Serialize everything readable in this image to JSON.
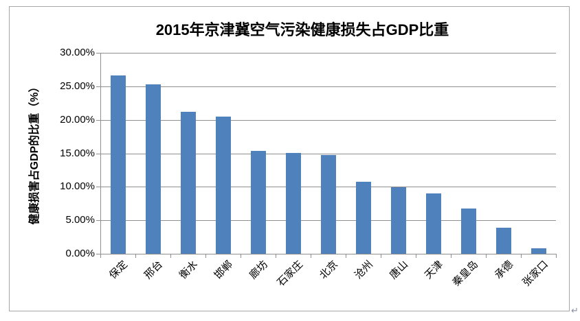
{
  "chart_data": {
    "type": "bar",
    "title": "2015年京津冀空气污染健康损失占GDP比重",
    "ylabel": "健康损害占GDP的比重（%）",
    "xlabel": "",
    "categories": [
      "保定",
      "邢台",
      "衡水",
      "邯郸",
      "廊坊",
      "石家庄",
      "北京",
      "沧州",
      "唐山",
      "天津",
      "秦皇岛",
      "承德",
      "张家口"
    ],
    "values": [
      26.6,
      25.3,
      21.2,
      20.5,
      15.4,
      15.0,
      14.7,
      10.7,
      9.9,
      9.0,
      6.8,
      3.9,
      0.8
    ],
    "unit": "%",
    "ylim": [
      0,
      30
    ],
    "ytick_step": 5,
    "ytick_labels": [
      "0.00%",
      "5.00%",
      "10.00%",
      "15.00%",
      "20.00%",
      "25.00%",
      "30.00%"
    ],
    "grid": true,
    "legend_position": "none",
    "bar_color": "#4F81BD",
    "gridline_color": "#8E8E8E",
    "axis_color": "#8E8E8E",
    "chart_border_color": "#A6A6A6",
    "text_color": "#000000"
  },
  "decorations": {
    "paragraph_mark": "↵"
  }
}
